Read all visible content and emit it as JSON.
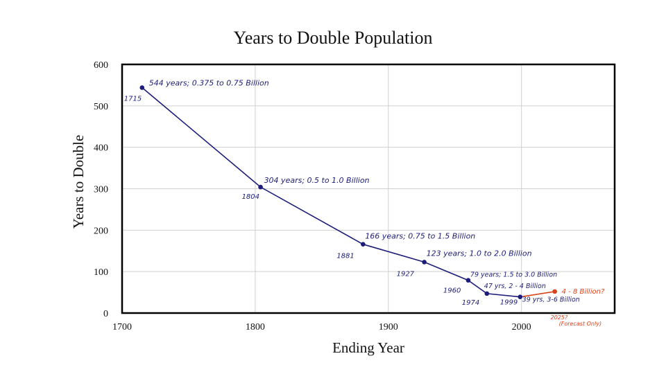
{
  "chart_data": {
    "type": "line",
    "title": "Years to Double Population",
    "xlabel": "Ending Year",
    "ylabel": "Years to Double",
    "xlim": [
      1700,
      2070
    ],
    "ylim": [
      0,
      600
    ],
    "x_ticks": [
      "1700",
      "1800",
      "1900",
      "2000"
    ],
    "y_ticks": [
      "0",
      "100",
      "200",
      "300",
      "400",
      "500",
      "600"
    ],
    "grid": true,
    "series": [
      {
        "color": "#1c1c7a",
        "points": [
          {
            "x": 1715,
            "y": 544,
            "year_label": "1715",
            "annotation": "544 years; 0.375 to 0.75 Billion"
          },
          {
            "x": 1804,
            "y": 304,
            "year_label": "1804",
            "annotation": "304 years; 0.5 to 1.0 Billion"
          },
          {
            "x": 1881,
            "y": 166,
            "year_label": "1881",
            "annotation": "166 years; 0.75 to 1.5 Billion"
          },
          {
            "x": 1927,
            "y": 123,
            "year_label": "1927",
            "annotation": "123 years; 1.0 to 2.0 Billion"
          },
          {
            "x": 1960,
            "y": 79,
            "year_label": "1960",
            "annotation": "79 years; 1.5 to 3.0 Billion"
          },
          {
            "x": 1974,
            "y": 47,
            "year_label": "1974",
            "annotation": "47 yrs, 2 - 4 Billion"
          },
          {
            "x": 1999,
            "y": 39,
            "year_label": "1999",
            "annotation": "39 yrs, 3-6 Billion"
          }
        ]
      },
      {
        "color": "#d9421a",
        "points": [
          {
            "x": 1999,
            "y": 39
          },
          {
            "x": 2025,
            "y": 52,
            "year_label": "2025?",
            "annotation": "4 - 8 Billion?",
            "note": "(Forecast Only)"
          }
        ]
      }
    ]
  }
}
